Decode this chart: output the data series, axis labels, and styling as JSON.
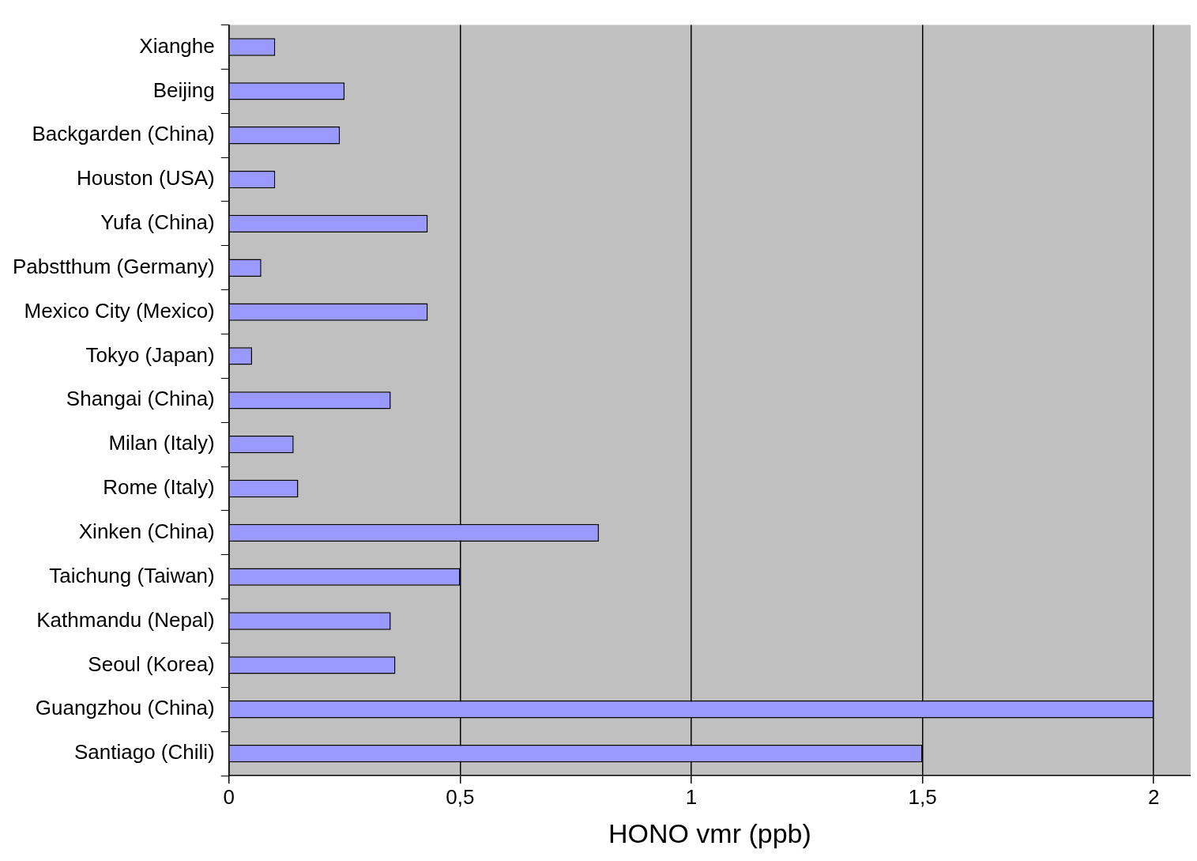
{
  "chart_data": {
    "type": "bar",
    "orientation": "horizontal",
    "xlabel": "HONO vmr (ppb)",
    "categories": [
      "Xianghe",
      "Beijing",
      "Backgarden (China)",
      "Houston (USA)",
      "Yufa (China)",
      "Pabstthum (Germany)",
      "Mexico City (Mexico)",
      "Tokyo (Japan)",
      "Shangai (China)",
      "Milan (Italy)",
      "Rome (Italy)",
      "Xinken (China)",
      "Taichung (Taiwan)",
      "Kathmandu (Nepal)",
      "Seoul (Korea)",
      "Guangzhou (China)",
      "Santiago (Chili)"
    ],
    "values": [
      0.1,
      0.25,
      0.24,
      0.1,
      0.43,
      0.07,
      0.43,
      0.05,
      0.35,
      0.14,
      0.15,
      0.8,
      0.5,
      0.35,
      0.36,
      2.0,
      1.5
    ],
    "color": "#9999ff",
    "xlim": [
      0,
      2.08
    ],
    "xticks": [
      0,
      {
        "value": 0.5,
        "label": "0,5"
      },
      1,
      {
        "value": 1.5,
        "label": "1,5"
      },
      2
    ],
    "grid": "x"
  }
}
